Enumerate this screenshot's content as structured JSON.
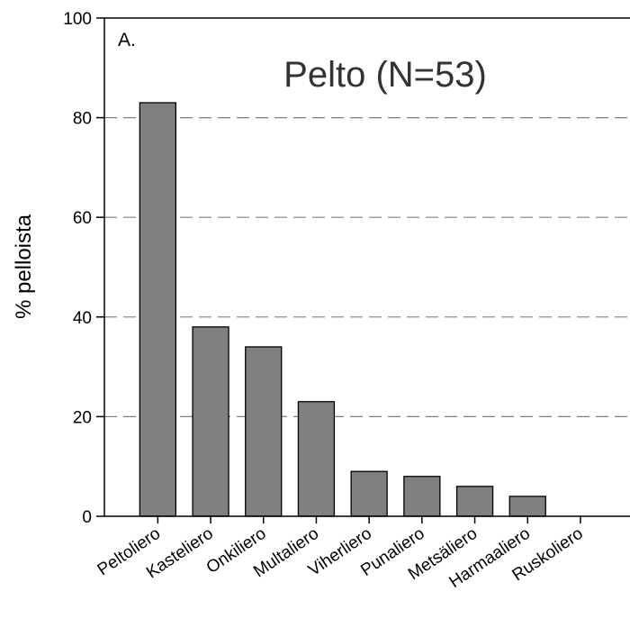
{
  "chart_data": {
    "type": "bar",
    "panel_label": "A.",
    "title": "Pelto (N=53)",
    "xlabel": "",
    "ylabel": "% pelloista",
    "ylim": [
      0,
      100
    ],
    "yticks": [
      0,
      20,
      40,
      60,
      80,
      100
    ],
    "grid": "horizontal dashed",
    "categories": [
      "Peltoliero",
      "Kasteliero",
      "Onkiliero",
      "Multaliero",
      "Viherliero",
      "Punaliero",
      "Metsäliero",
      "Harmaaliero",
      "Ruskoliero"
    ],
    "values": [
      83,
      38,
      34,
      23,
      9,
      8,
      6,
      4,
      0
    ],
    "colors": {
      "bar": "#808080",
      "bar_edge": "#000000",
      "grid": "#808080",
      "axis": "#000000"
    }
  }
}
